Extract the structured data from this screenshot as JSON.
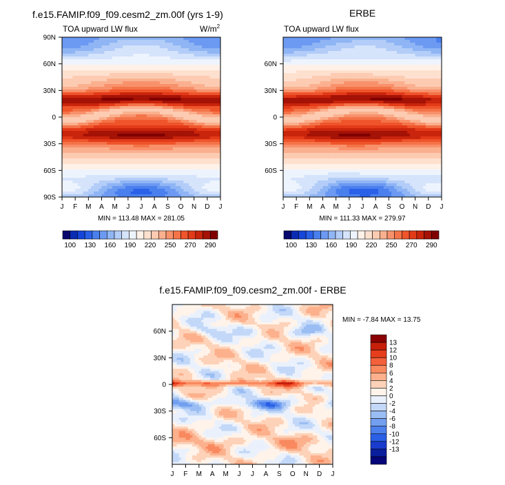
{
  "chart_data": [
    {
      "type": "heatmap",
      "title": "f.e15.FAMIP.f09_f09.cesm2_zm.00f (yrs 1-9)",
      "subtitle": "TOA upward LW flux",
      "units_base": "W/m",
      "units_exp": "2",
      "xlabel": "",
      "ylabel": "",
      "x_ticks": [
        "J",
        "F",
        "M",
        "A",
        "M",
        "J",
        "J",
        "A",
        "S",
        "O",
        "N",
        "D",
        "J"
      ],
      "y_ticks": [
        "90N",
        "60N",
        "30N",
        "0",
        "30S",
        "60S",
        "90S"
      ],
      "ylim": [
        -90,
        90
      ],
      "stats_text": "MIN = 113.48 MAX = 281.05",
      "min": 113.48,
      "max": 281.05,
      "colorbar": {
        "orientation": "horizontal",
        "labels": [
          "100",
          "130",
          "160",
          "190",
          "220",
          "250",
          "270",
          "290"
        ],
        "levels": [
          100,
          110,
          120,
          130,
          140,
          150,
          160,
          170,
          180,
          190,
          200,
          210,
          220,
          230,
          240,
          250,
          260,
          270,
          280,
          290
        ],
        "colors": [
          "#08086e",
          "#0b2bb3",
          "#1646d9",
          "#2a61e8",
          "#4a7fee",
          "#6c9af2",
          "#8fb5f5",
          "#b3cdf8",
          "#d5e4fb",
          "#eef4fd",
          "#fff1e8",
          "#fee0cf",
          "#fccbb1",
          "#fab08f",
          "#f8916b",
          "#f47348",
          "#ef542b",
          "#e33a19",
          "#c9240c",
          "#a51206",
          "#800000"
        ]
      }
    },
    {
      "type": "heatmap",
      "title": "ERBE",
      "subtitle": "TOA upward LW flux",
      "x_ticks": [
        "J",
        "F",
        "M",
        "A",
        "M",
        "J",
        "J",
        "A",
        "S",
        "O",
        "N",
        "D",
        "J"
      ],
      "y_ticks": [
        "60N",
        "30N",
        "0",
        "30S",
        "60S"
      ],
      "ylim": [
        -90,
        90
      ],
      "stats_text": "MIN = 111.33 MAX = 279.97",
      "min": 111.33,
      "max": 279.97,
      "colorbar": {
        "orientation": "horizontal",
        "labels": [
          "100",
          "130",
          "160",
          "190",
          "220",
          "250",
          "270",
          "290"
        ]
      }
    },
    {
      "type": "heatmap",
      "title": "f.e15.FAMIP.f09_f09.cesm2_zm.00f - ERBE",
      "x_ticks": [
        "J",
        "F",
        "M",
        "A",
        "M",
        "J",
        "J",
        "A",
        "S",
        "O",
        "N",
        "D",
        "J"
      ],
      "y_ticks": [
        "60N",
        "30N",
        "0",
        "30S",
        "60S"
      ],
      "ylim": [
        -90,
        90
      ],
      "stats_text": "MIN =  -7.84 MAX =  13.75",
      "min": -7.84,
      "max": 13.75,
      "colorbar": {
        "orientation": "vertical",
        "labels": [
          "13",
          "12",
          "10",
          "8",
          "6",
          "4",
          "2",
          "0",
          "-2",
          "-4",
          "-6",
          "-8",
          "-10",
          "-12",
          "-13"
        ],
        "colors": [
          "#8b0000",
          "#c71f0a",
          "#e63e1c",
          "#f4603a",
          "#f9895f",
          "#fcb08c",
          "#fdd2b8",
          "#fff3ea",
          "#eaf1fc",
          "#c3d8f8",
          "#9abdf3",
          "#729ff0",
          "#4c80ec",
          "#2a5fe6",
          "#1a3ccc",
          "#0a1f9e",
          "#06067a"
        ]
      }
    }
  ]
}
